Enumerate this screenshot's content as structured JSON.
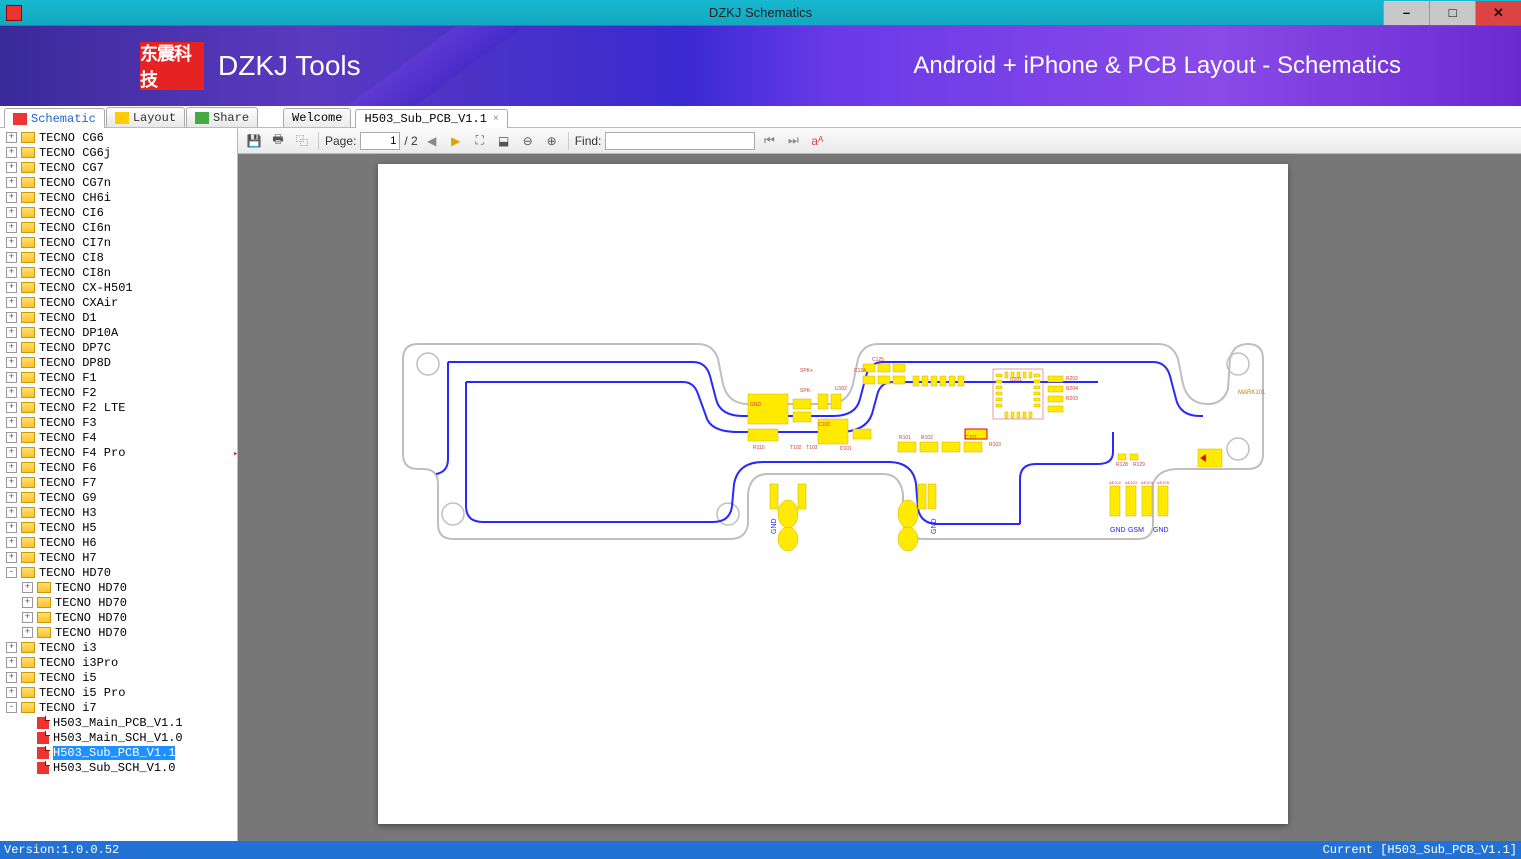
{
  "window": {
    "title": "DZKJ Schematics"
  },
  "banner": {
    "logo_text": "东震科技",
    "title": "DZKJ Tools",
    "subtitle": "Android + iPhone & PCB Layout - Schematics"
  },
  "mode_tabs": [
    {
      "label": "Schematic",
      "icon": "pdf",
      "active": true,
      "color": "#1e62d0"
    },
    {
      "label": "Layout",
      "icon": "pads",
      "active": false,
      "color": "#333"
    },
    {
      "label": "Share",
      "icon": "share",
      "active": false,
      "color": "#333"
    }
  ],
  "doc_tabs": [
    {
      "label": "Welcome",
      "active": false,
      "closable": false
    },
    {
      "label": "H503_Sub_PCB_V1.1",
      "active": true,
      "closable": true
    }
  ],
  "toolbar": {
    "page_label": "Page:",
    "page_current": "1",
    "page_total": "/ 2",
    "find_label": "Find:",
    "find_value": ""
  },
  "tree": [
    {
      "l": 1,
      "exp": "+",
      "ico": "folder",
      "label": "TECNO CG6"
    },
    {
      "l": 1,
      "exp": "+",
      "ico": "folder",
      "label": "TECNO CG6j"
    },
    {
      "l": 1,
      "exp": "+",
      "ico": "folder",
      "label": "TECNO CG7"
    },
    {
      "l": 1,
      "exp": "+",
      "ico": "folder",
      "label": "TECNO CG7n"
    },
    {
      "l": 1,
      "exp": "+",
      "ico": "folder",
      "label": "TECNO CH6i"
    },
    {
      "l": 1,
      "exp": "+",
      "ico": "folder",
      "label": "TECNO CI6"
    },
    {
      "l": 1,
      "exp": "+",
      "ico": "folder",
      "label": "TECNO CI6n"
    },
    {
      "l": 1,
      "exp": "+",
      "ico": "folder",
      "label": "TECNO CI7n"
    },
    {
      "l": 1,
      "exp": "+",
      "ico": "folder",
      "label": "TECNO CI8"
    },
    {
      "l": 1,
      "exp": "+",
      "ico": "folder",
      "label": "TECNO CI8n"
    },
    {
      "l": 1,
      "exp": "+",
      "ico": "folder",
      "label": "TECNO CX-H501"
    },
    {
      "l": 1,
      "exp": "+",
      "ico": "folder",
      "label": "TECNO CXAir"
    },
    {
      "l": 1,
      "exp": "+",
      "ico": "folder",
      "label": "TECNO D1"
    },
    {
      "l": 1,
      "exp": "+",
      "ico": "folder",
      "label": "TECNO DP10A"
    },
    {
      "l": 1,
      "exp": "+",
      "ico": "folder",
      "label": "TECNO DP7C"
    },
    {
      "l": 1,
      "exp": "+",
      "ico": "folder",
      "label": "TECNO DP8D"
    },
    {
      "l": 1,
      "exp": "+",
      "ico": "folder",
      "label": "TECNO F1"
    },
    {
      "l": 1,
      "exp": "+",
      "ico": "folder",
      "label": "TECNO F2"
    },
    {
      "l": 1,
      "exp": "+",
      "ico": "folder",
      "label": "TECNO F2 LTE"
    },
    {
      "l": 1,
      "exp": "+",
      "ico": "folder",
      "label": "TECNO F3"
    },
    {
      "l": 1,
      "exp": "+",
      "ico": "folder",
      "label": "TECNO F4"
    },
    {
      "l": 1,
      "exp": "+",
      "ico": "folder",
      "label": "TECNO F4 Pro"
    },
    {
      "l": 1,
      "exp": "+",
      "ico": "folder",
      "label": "TECNO F6"
    },
    {
      "l": 1,
      "exp": "+",
      "ico": "folder",
      "label": "TECNO F7"
    },
    {
      "l": 1,
      "exp": "+",
      "ico": "folder",
      "label": "TECNO G9"
    },
    {
      "l": 1,
      "exp": "+",
      "ico": "folder",
      "label": "TECNO H3"
    },
    {
      "l": 1,
      "exp": "+",
      "ico": "folder",
      "label": "TECNO H5"
    },
    {
      "l": 1,
      "exp": "+",
      "ico": "folder",
      "label": "TECNO H6"
    },
    {
      "l": 1,
      "exp": "+",
      "ico": "folder",
      "label": "TECNO H7"
    },
    {
      "l": 1,
      "exp": "-",
      "ico": "folder",
      "label": "TECNO HD70"
    },
    {
      "l": 2,
      "exp": "+",
      "ico": "folder",
      "label": "TECNO HD70"
    },
    {
      "l": 2,
      "exp": "+",
      "ico": "folder",
      "label": "TECNO HD70"
    },
    {
      "l": 2,
      "exp": "+",
      "ico": "folder",
      "label": "TECNO HD70"
    },
    {
      "l": 2,
      "exp": "+",
      "ico": "folder",
      "label": "TECNO HD70"
    },
    {
      "l": 1,
      "exp": "+",
      "ico": "folder",
      "label": "TECNO i3"
    },
    {
      "l": 1,
      "exp": "+",
      "ico": "folder",
      "label": "TECNO i3Pro"
    },
    {
      "l": 1,
      "exp": "+",
      "ico": "folder",
      "label": "TECNO i5"
    },
    {
      "l": 1,
      "exp": "+",
      "ico": "folder",
      "label": "TECNO i5 Pro"
    },
    {
      "l": 1,
      "exp": "-",
      "ico": "folder",
      "label": "TECNO i7"
    },
    {
      "l": 2,
      "exp": " ",
      "ico": "pdf",
      "label": "H503_Main_PCB_V1.1"
    },
    {
      "l": 2,
      "exp": " ",
      "ico": "pdf",
      "label": "H503_Main_SCH_V1.0"
    },
    {
      "l": 2,
      "exp": " ",
      "ico": "pdf",
      "label": "H503_Sub_PCB_V1.1",
      "selected": true
    },
    {
      "l": 2,
      "exp": " ",
      "ico": "pdf",
      "label": "H503_Sub_SCH_V1.0"
    }
  ],
  "pcb": {
    "outline_color": "#bfbfbf",
    "trace_color": "#2929ff",
    "pad_color": "#ffea00",
    "silk_color": "#d04030",
    "text_color": "#2020ff",
    "mark_label": "MARK101",
    "gnd_labels": [
      "GND",
      "GND",
      "GND",
      "GSM",
      "GND"
    ],
    "component_labels": [
      "SPK+",
      "SPK-",
      "GND",
      "U102",
      "C103",
      "C104",
      "D101",
      "T102",
      "T103",
      "R110",
      "C124",
      "C125",
      "U201",
      "R202",
      "R204",
      "R203",
      "R101",
      "R102",
      "C101",
      "R103",
      "R104",
      "R106",
      "R128",
      "R129",
      "AE102",
      "AE103",
      "AE104",
      "AE105"
    ]
  },
  "status": {
    "version": "Version:1.0.0.52",
    "current": "Current [H503_Sub_PCB_V1.1]"
  }
}
